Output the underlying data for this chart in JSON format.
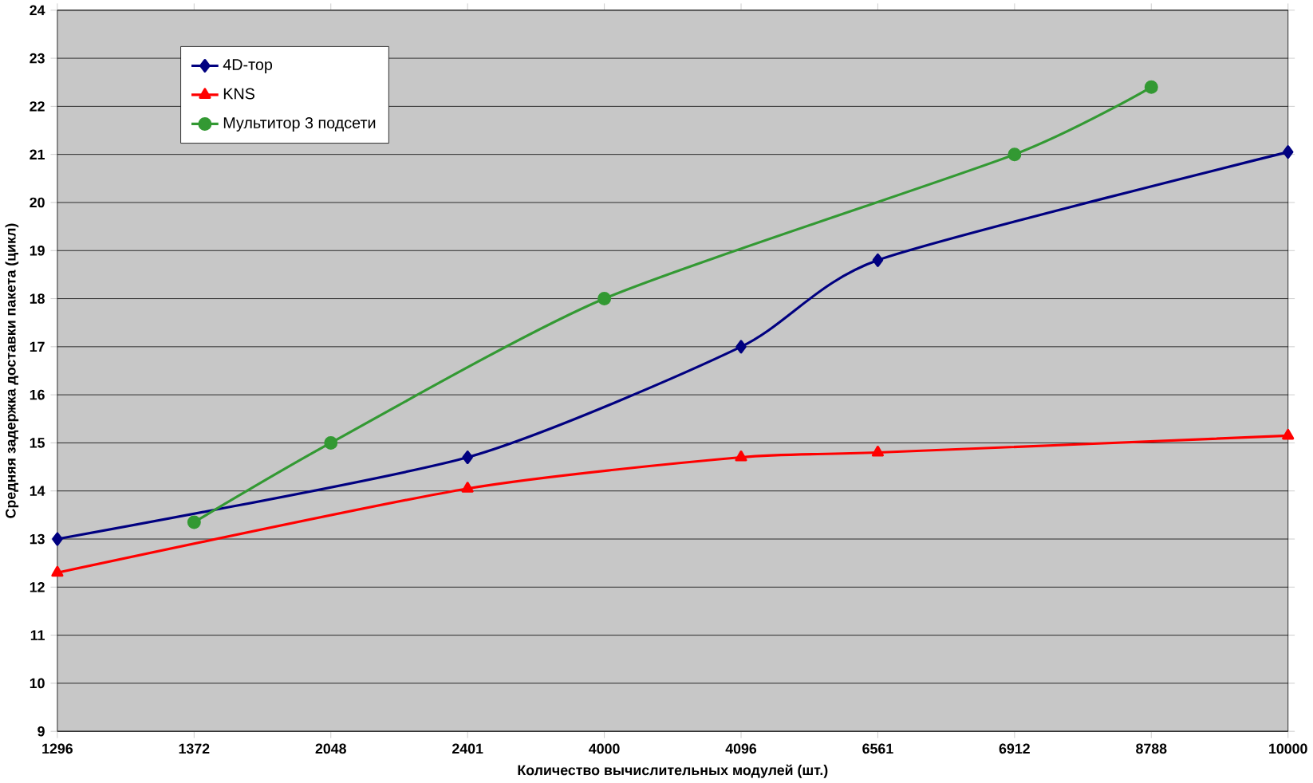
{
  "chart_data": {
    "type": "line",
    "xlabel": "Количество вычислительных модулей (шт.)",
    "ylabel": "Средняя задержка доставки пакета (цикл)",
    "categories": [
      "1296",
      "1372",
      "2048",
      "2401",
      "4000",
      "4096",
      "6561",
      "6912",
      "8788",
      "10000"
    ],
    "series": [
      {
        "name": "4D-тор",
        "color": "#000080",
        "marker": "diamond",
        "values": [
          13.0,
          null,
          null,
          14.7,
          null,
          17.0,
          18.8,
          null,
          null,
          21.05
        ]
      },
      {
        "name": "KNS",
        "color": "#ff0000",
        "marker": "triangle",
        "values": [
          12.3,
          null,
          null,
          14.05,
          null,
          14.7,
          14.8,
          null,
          null,
          15.15
        ]
      },
      {
        "name": "Мультитор 3 подсети",
        "color": "#339933",
        "marker": "circle",
        "values": [
          null,
          13.35,
          15.0,
          null,
          18.0,
          null,
          null,
          21.0,
          22.4,
          null
        ]
      }
    ],
    "ylim": [
      9,
      24
    ],
    "yticks": [
      9,
      10,
      11,
      12,
      13,
      14,
      15,
      16,
      17,
      18,
      19,
      20,
      21,
      22,
      23,
      24
    ],
    "grid": "y",
    "legend": "top left"
  }
}
